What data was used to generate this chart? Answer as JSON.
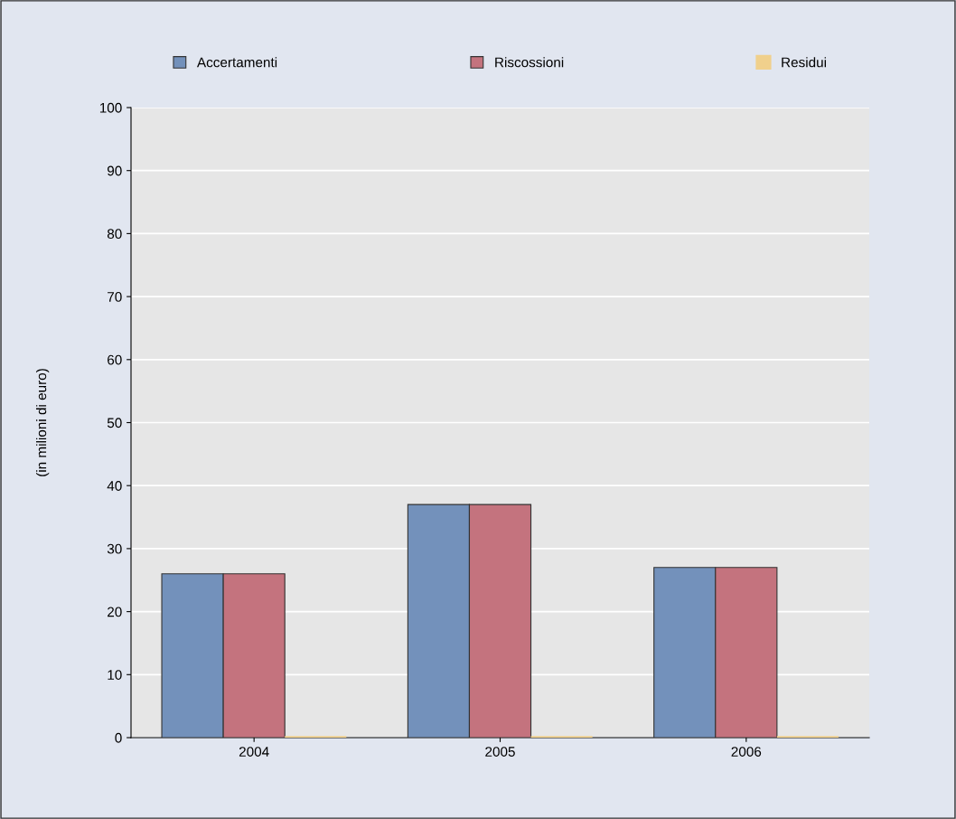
{
  "chart_data": {
    "type": "bar",
    "ylabel": "(in milioni di euro)",
    "categories": [
      "2004",
      "2005",
      "2006"
    ],
    "series": [
      {
        "name": "Accertamenti",
        "color": "#7391bb",
        "values": [
          26,
          37,
          27
        ]
      },
      {
        "name": "Riscossioni",
        "color": "#c4737e",
        "values": [
          26,
          37,
          27
        ]
      },
      {
        "name": "Residui",
        "color": "#f0d08c",
        "values": [
          0,
          0,
          0
        ]
      }
    ],
    "ylim": [
      0,
      100
    ],
    "yticks": [
      0,
      10,
      20,
      30,
      40,
      50,
      60,
      70,
      80,
      90,
      100
    ],
    "grid": "y",
    "legend": "top"
  }
}
